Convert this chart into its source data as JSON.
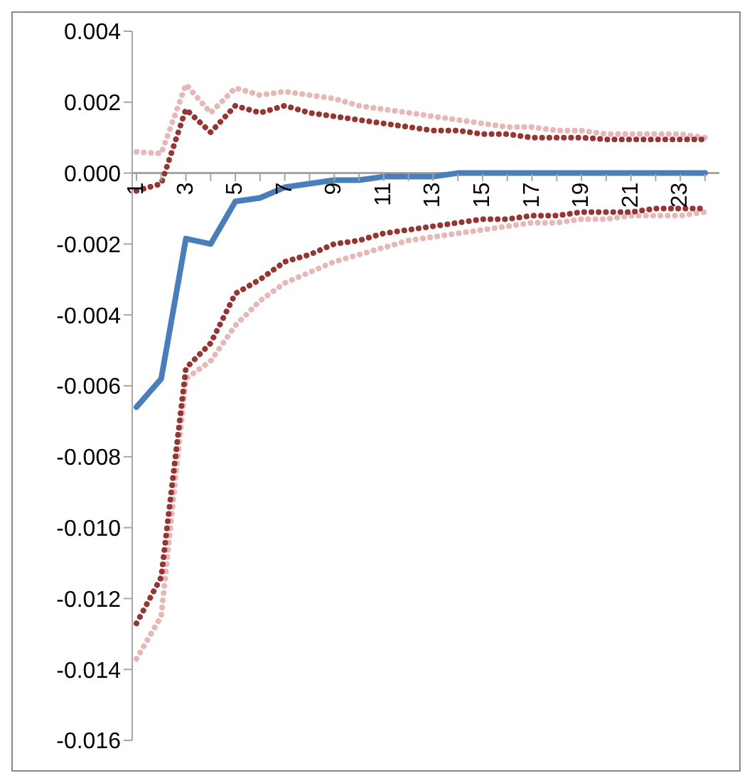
{
  "chart_data": {
    "type": "line",
    "categories": [
      "1",
      null,
      "3",
      null,
      "5",
      null,
      "7",
      null,
      "9",
      null,
      "11",
      null,
      "13",
      null,
      "15",
      null,
      "17",
      null,
      "19",
      null,
      "21",
      null,
      "23",
      null
    ],
    "series": [
      {
        "color": "#e6b9b8",
        "line_style": "dotted",
        "values": [
          0.0006,
          0.00055,
          0.0025,
          0.0017,
          0.0024,
          0.0022,
          0.0023,
          0.0022,
          0.0021,
          0.0019,
          0.0018,
          0.0017,
          0.0016,
          0.0015,
          0.0014,
          0.0013,
          0.0013,
          0.0012,
          0.0012,
          0.0011,
          0.0011,
          0.0011,
          0.0011,
          0.001
        ]
      },
      {
        "color": "#e6b9b8",
        "line_style": "dotted",
        "values": [
          -0.0137,
          -0.0125,
          -0.0058,
          -0.0053,
          -0.0043,
          -0.0036,
          -0.0031,
          -0.0028,
          -0.0025,
          -0.0023,
          -0.0021,
          -0.0019,
          -0.0018,
          -0.0017,
          -0.0016,
          -0.0015,
          -0.0014,
          -0.0014,
          -0.0013,
          -0.0013,
          -0.0012,
          -0.0012,
          -0.0012,
          -0.0011
        ]
      },
      {
        "color": "#943634",
        "line_style": "dotted",
        "values": [
          -0.0005,
          -0.0003,
          0.0018,
          0.00115,
          0.0019,
          0.0017,
          0.0019,
          0.0017,
          0.0016,
          0.0015,
          0.0014,
          0.0013,
          0.0012,
          0.0012,
          0.0011,
          0.0011,
          0.001,
          0.001,
          0.001,
          0.00095,
          0.00095,
          0.00095,
          0.00095,
          0.00095
        ]
      },
      {
        "color": "#943634",
        "line_style": "dotted",
        "values": [
          -0.0127,
          -0.0114,
          -0.0055,
          -0.0048,
          -0.0034,
          -0.003,
          -0.0025,
          -0.0023,
          -0.002,
          -0.0019,
          -0.0017,
          -0.0016,
          -0.0015,
          -0.0014,
          -0.0013,
          -0.0013,
          -0.0012,
          -0.0012,
          -0.0011,
          -0.0011,
          -0.0011,
          -0.001,
          -0.001,
          -0.001
        ]
      },
      {
        "color": "#4a7ebb",
        "line_style": "solid",
        "values": [
          -0.0066,
          -0.0058,
          -0.00185,
          -0.002,
          -0.0008,
          -0.0007,
          -0.0004,
          -0.0003,
          -0.0002,
          -0.0002,
          -0.0001,
          -0.0001,
          -0.0001,
          0,
          0,
          0,
          0,
          0,
          0,
          0,
          0,
          0,
          0,
          0
        ]
      }
    ],
    "ylim": [
      -0.016,
      0.004
    ],
    "yticks": [
      {
        "value": -0.016,
        "label": "-0.016"
      },
      {
        "value": -0.014,
        "label": "-0.014"
      },
      {
        "value": -0.012,
        "label": "-0.012"
      },
      {
        "value": -0.01,
        "label": "-0.010"
      },
      {
        "value": -0.008,
        "label": "-0.008"
      },
      {
        "value": -0.006,
        "label": "-0.006"
      },
      {
        "value": -0.004,
        "label": "-0.004"
      },
      {
        "value": -0.002,
        "label": "-0.002"
      },
      {
        "value": 0,
        "label": "0.000"
      },
      {
        "value": 0.002,
        "label": "0.002"
      },
      {
        "value": 0.004,
        "label": "0.004"
      }
    ],
    "grid": false,
    "legend": false,
    "marker": "none"
  }
}
